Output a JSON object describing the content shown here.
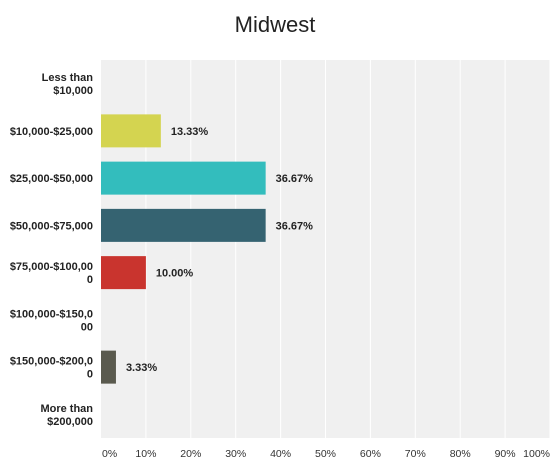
{
  "chart_data": {
    "type": "bar",
    "orientation": "horizontal",
    "title": "Midwest",
    "categories": [
      [
        "Less than",
        "$10,000"
      ],
      [
        "$10,000-$25,000"
      ],
      [
        "$25,000-$50,000"
      ],
      [
        "$50,000-$75,000"
      ],
      [
        "$75,000-$100,00",
        "0"
      ],
      [
        "$100,000-$150,0",
        "00"
      ],
      [
        "$150,000-$200,0",
        "0"
      ],
      [
        "More than",
        "$200,000"
      ]
    ],
    "values": [
      null,
      13.33,
      36.67,
      36.67,
      10.0,
      null,
      3.33,
      null
    ],
    "value_labels": [
      "",
      "13.33%",
      "36.67%",
      "36.67%",
      "10.00%",
      "",
      "3.33%",
      ""
    ],
    "colors": [
      "#cccccc",
      "#d4d450",
      "#33bdbd",
      "#356371",
      "#c9342e",
      "#999999",
      "#5a5a4e",
      "#999999"
    ],
    "xlim": [
      0,
      100
    ],
    "ticks": [
      "0%",
      "10%",
      "20%",
      "30%",
      "40%",
      "50%",
      "60%",
      "70%",
      "80%",
      "90%",
      "100%"
    ],
    "grid": true,
    "background": "#f0f0f0",
    "gridline_color": "#ffffff"
  }
}
